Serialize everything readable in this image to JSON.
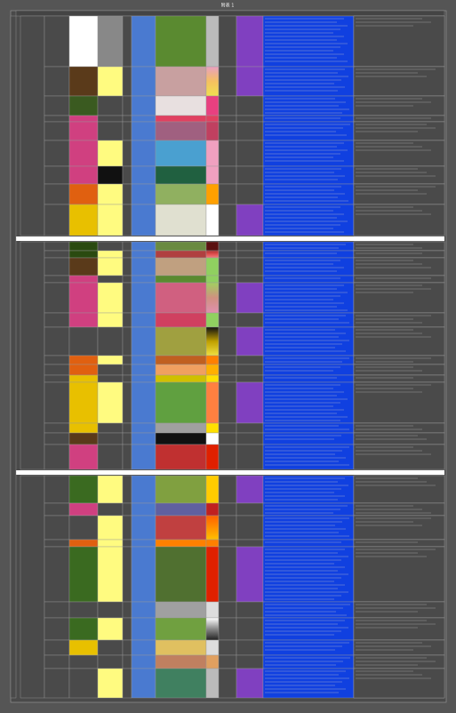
{
  "header": {
    "title": "附表 1"
  }
}
